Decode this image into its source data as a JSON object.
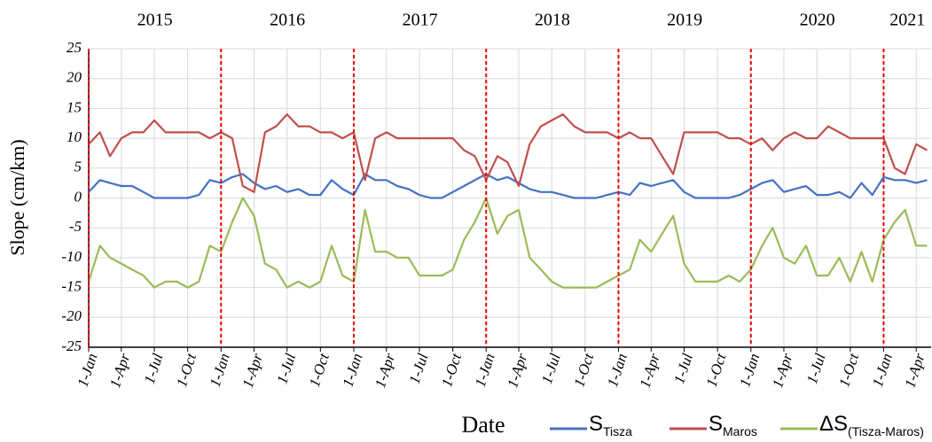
{
  "chart_data": {
    "type": "line",
    "y_label": "Slope (cm/km)",
    "x_label": "Date",
    "ylim": [
      -25,
      25
    ],
    "yticks": [
      -25,
      -20,
      -15,
      -10,
      -5,
      0,
      5,
      10,
      15,
      20,
      25
    ],
    "xlim": [
      "2015-01-01",
      "2021-05-12"
    ],
    "xticks": [
      {
        "value": "2015-01-01",
        "label": "1-Jan"
      },
      {
        "value": "2015-04-01",
        "label": "1-Apr"
      },
      {
        "value": "2015-07-01",
        "label": "1-Jul"
      },
      {
        "value": "2015-10-01",
        "label": "1-Oct"
      },
      {
        "value": "2016-01-01",
        "label": "1-Jan"
      },
      {
        "value": "2016-04-01",
        "label": "1-Apr"
      },
      {
        "value": "2016-07-01",
        "label": "1-Jul"
      },
      {
        "value": "2016-10-01",
        "label": "1-Oct"
      },
      {
        "value": "2017-01-01",
        "label": "1-Jan"
      },
      {
        "value": "2017-04-01",
        "label": "1-Apr"
      },
      {
        "value": "2017-07-01",
        "label": "1-Jul"
      },
      {
        "value": "2017-10-01",
        "label": "1-Oct"
      },
      {
        "value": "2018-01-01",
        "label": "1-Jan"
      },
      {
        "value": "2018-04-01",
        "label": "1-Apr"
      },
      {
        "value": "2018-07-01",
        "label": "1-Jul"
      },
      {
        "value": "2018-10-01",
        "label": "1-Oct"
      },
      {
        "value": "2019-01-01",
        "label": "1-Jan"
      },
      {
        "value": "2019-04-01",
        "label": "1-Apr"
      },
      {
        "value": "2019-07-01",
        "label": "1-Jul"
      },
      {
        "value": "2019-10-01",
        "label": "1-Oct"
      },
      {
        "value": "2020-01-01",
        "label": "1-Jan"
      },
      {
        "value": "2020-04-01",
        "label": "1-Apr"
      },
      {
        "value": "2020-07-01",
        "label": "1-Jul"
      },
      {
        "value": "2020-10-01",
        "label": "1-Oct"
      },
      {
        "value": "2021-01-01",
        "label": "1-Jan"
      },
      {
        "value": "2021-04-01",
        "label": "1-Apr"
      }
    ],
    "grid": true,
    "year_boundaries": [
      "2015-01-01",
      "2016-01-01",
      "2017-01-01",
      "2018-01-01",
      "2019-01-01",
      "2020-01-01",
      "2021-01-01"
    ],
    "year_labels": [
      "2015",
      "2016",
      "2017",
      "2018",
      "2019",
      "2020",
      "2021"
    ],
    "x": [
      "2015-01-01",
      "2015-02-01",
      "2015-03-01",
      "2015-04-01",
      "2015-05-01",
      "2015-06-01",
      "2015-07-01",
      "2015-08-01",
      "2015-09-01",
      "2015-10-01",
      "2015-11-01",
      "2015-12-01",
      "2016-01-01",
      "2016-02-01",
      "2016-03-01",
      "2016-04-01",
      "2016-05-01",
      "2016-06-01",
      "2016-07-01",
      "2016-08-01",
      "2016-09-01",
      "2016-10-01",
      "2016-11-01",
      "2016-12-01",
      "2017-01-01",
      "2017-02-01",
      "2017-03-01",
      "2017-04-01",
      "2017-05-01",
      "2017-06-01",
      "2017-07-01",
      "2017-08-01",
      "2017-09-01",
      "2017-10-01",
      "2017-11-01",
      "2017-12-01",
      "2018-01-01",
      "2018-02-01",
      "2018-03-01",
      "2018-04-01",
      "2018-05-01",
      "2018-06-01",
      "2018-07-01",
      "2018-08-01",
      "2018-09-01",
      "2018-10-01",
      "2018-11-01",
      "2018-12-01",
      "2019-01-01",
      "2019-02-01",
      "2019-03-01",
      "2019-04-01",
      "2019-05-01",
      "2019-06-01",
      "2019-07-01",
      "2019-08-01",
      "2019-09-01",
      "2019-10-01",
      "2019-11-01",
      "2019-12-01",
      "2020-01-01",
      "2020-02-01",
      "2020-03-01",
      "2020-04-01",
      "2020-05-01",
      "2020-06-01",
      "2020-07-01",
      "2020-08-01",
      "2020-09-01",
      "2020-10-01",
      "2020-11-01",
      "2020-12-01",
      "2021-01-01",
      "2021-02-01",
      "2021-03-01",
      "2021-04-01",
      "2021-05-01"
    ],
    "series": [
      {
        "name": "S",
        "subscript": "Tisza",
        "color": "#4472c4",
        "values": [
          1,
          3,
          2.5,
          2,
          2,
          1,
          0,
          0,
          0,
          0,
          0.5,
          3,
          2.5,
          3.5,
          4,
          2.5,
          1.5,
          2,
          1,
          1.5,
          0.5,
          0.5,
          3,
          1.5,
          0.5,
          4,
          3,
          3,
          2,
          1.5,
          0.5,
          0,
          0,
          1,
          2,
          3,
          4,
          3,
          3.5,
          2.5,
          1.5,
          1,
          1,
          0.5,
          0,
          0,
          0,
          0.5,
          1,
          0.5,
          2.5,
          2,
          2.5,
          3,
          1,
          0,
          0,
          0,
          0,
          0.5,
          1.5,
          2.5,
          3,
          1,
          1.5,
          2,
          0.5,
          0.5,
          1,
          0,
          2.5,
          0.5,
          3.5,
          3,
          3,
          2.5,
          3
        ]
      },
      {
        "name": "S",
        "subscript": "Maros",
        "color": "#c0504d",
        "values": [
          9,
          11,
          7,
          10,
          11,
          11,
          13,
          11,
          11,
          11,
          11,
          10,
          11,
          10,
          2,
          1,
          11,
          12,
          14,
          12,
          12,
          11,
          11,
          10,
          11,
          3,
          10,
          11,
          10,
          10,
          10,
          10,
          10,
          10,
          8,
          7,
          3,
          7,
          6,
          2,
          9,
          12,
          13,
          14,
          12,
          11,
          11,
          11,
          10,
          11,
          10,
          10,
          7,
          4,
          11,
          11,
          11,
          11,
          10,
          10,
          9,
          10,
          8,
          10,
          11,
          10,
          10,
          12,
          11,
          10,
          10,
          10,
          10,
          5,
          4,
          9,
          8
        ]
      },
      {
        "name": "ΔS",
        "subscript": "(Tisza-Maros)",
        "color": "#9bbb59",
        "values": [
          -14,
          -8,
          -10,
          -11,
          -12,
          -13,
          -15,
          -14,
          -14,
          -15,
          -14,
          -8,
          -9,
          -4,
          0,
          -3,
          -11,
          -12,
          -15,
          -14,
          -15,
          -14,
          -8,
          -13,
          -14,
          -2,
          -9,
          -9,
          -10,
          -10,
          -13,
          -13,
          -13,
          -12,
          -7,
          -4,
          0,
          -6,
          -3,
          -2,
          -10,
          -12,
          -14,
          -15,
          -15,
          -15,
          -15,
          -14,
          -13,
          -12,
          -7,
          -9,
          -6,
          -3,
          -11,
          -14,
          -14,
          -14,
          -13,
          -14,
          -12,
          -8,
          -5,
          -10,
          -11,
          -8,
          -13,
          -13,
          -10,
          -14,
          -9,
          -14,
          -7,
          -4,
          -2,
          -8,
          -8
        ]
      }
    ]
  }
}
